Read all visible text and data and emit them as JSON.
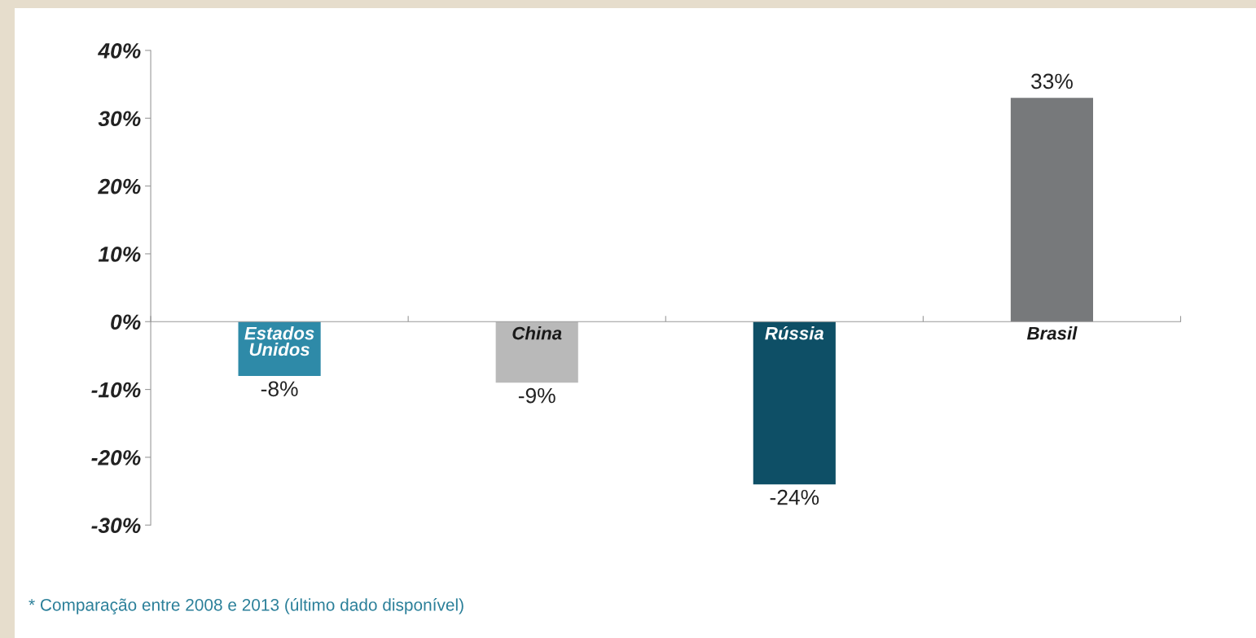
{
  "chart_data": {
    "type": "bar",
    "categories": [
      "Estados Unidos",
      "China",
      "Rússia",
      "Brasil"
    ],
    "values": [
      -8,
      -9,
      -24,
      33
    ],
    "colors": [
      "#2e8aa8",
      "#b9b9b9",
      "#0e4f66",
      "#77797b"
    ],
    "value_labels": [
      "-8%",
      "-9%",
      "-24%",
      "33%"
    ],
    "ylim": [
      -30,
      40
    ],
    "yticks": [
      {
        "value": 40,
        "label": "40%"
      },
      {
        "value": 30,
        "label": "30%"
      },
      {
        "value": 20,
        "label": "20%"
      },
      {
        "value": 10,
        "label": "10%"
      },
      {
        "value": 0,
        "label": "0%"
      },
      {
        "value": -10,
        "label": "-10%"
      },
      {
        "value": -20,
        "label": "-20%"
      },
      {
        "value": -30,
        "label": "-30%"
      }
    ],
    "grid": false,
    "legend": false,
    "annotations": [
      "* Comparação entre 2008 e 2013 (último dado disponível)"
    ]
  }
}
